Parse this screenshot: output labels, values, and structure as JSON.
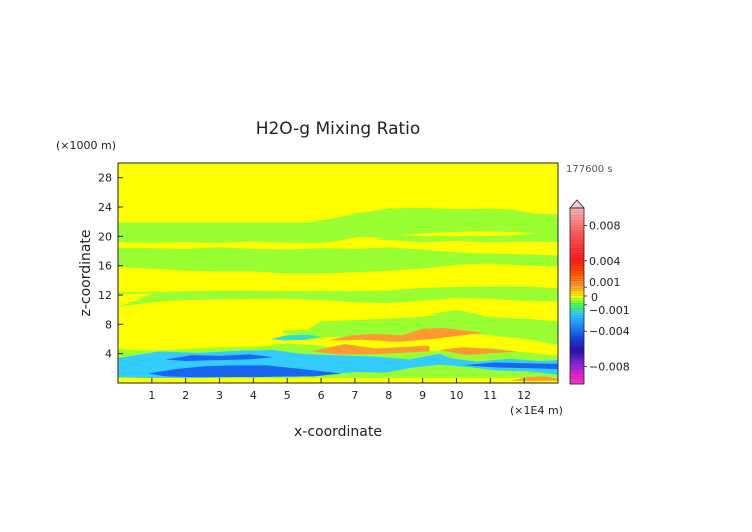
{
  "chart_data": {
    "type": "heatmap",
    "title": "H2O-g Mixing Ratio",
    "xlabel": "x-coordinate",
    "ylabel": "z-coordinate",
    "x_unit": "(×1E4 m)",
    "y_unit": "(×1000 m)",
    "time_label": "177600 s",
    "xlim": [
      0,
      13
    ],
    "ylim": [
      0,
      30
    ],
    "x_ticks": [
      "1",
      "2",
      "3",
      "4",
      "5",
      "6",
      "7",
      "8",
      "9",
      "10",
      "11",
      "12"
    ],
    "y_ticks": [
      "4",
      "8",
      "12",
      "16",
      "20",
      "24",
      "28"
    ],
    "colorbar": {
      "range": [
        -0.01,
        0.01
      ],
      "tick_labels": [
        "0.008",
        "0.004",
        "0.001",
        "0",
        "−0.001",
        "−0.004",
        "−0.008"
      ],
      "tick_values": [
        0.008,
        0.004,
        0.001,
        0,
        -0.001,
        -0.004,
        -0.008
      ]
    },
    "background_color": "#ffff00",
    "colors": {
      "pos_small": "#ffff00",
      "neg_small": "#99ff33",
      "pos_mid": "#ff9933",
      "neg_mid": "#33ccff",
      "neg_strong": "#1a66ee",
      "neg_weak_cyan": "#33ddcc"
    },
    "regions": [
      {
        "color": "#99ff33",
        "points": [
          [
            0,
            0.7
          ],
          [
            13,
            0.7
          ],
          [
            13,
            3.7
          ],
          [
            12,
            4.2
          ],
          [
            11,
            4.8
          ],
          [
            10,
            4.6
          ],
          [
            9,
            4.2
          ],
          [
            8,
            4.4
          ],
          [
            7,
            4.1
          ],
          [
            6,
            5.1
          ],
          [
            5,
            5.4
          ],
          [
            4,
            4.9
          ],
          [
            3,
            4.9
          ],
          [
            2,
            4.6
          ],
          [
            1,
            4.4
          ],
          [
            0,
            4.6
          ]
        ]
      },
      {
        "color": "#99ff33",
        "points": [
          [
            4.8,
            7.1
          ],
          [
            5.6,
            7.3
          ],
          [
            6,
            8.4
          ],
          [
            7.1,
            8.6
          ],
          [
            8.1,
            8.8
          ],
          [
            9,
            9.2
          ],
          [
            10,
            10
          ],
          [
            11,
            9
          ],
          [
            12,
            8.8
          ],
          [
            13,
            8.4
          ],
          [
            13,
            5.2
          ],
          [
            12,
            6
          ],
          [
            11,
            6.5
          ],
          [
            10,
            6.8
          ],
          [
            9,
            6.5
          ],
          [
            8,
            6.2
          ],
          [
            7,
            6.3
          ],
          [
            6,
            6.2
          ],
          [
            5,
            6.7
          ]
        ]
      },
      {
        "color": "#99ff33",
        "points": [
          [
            0,
            10.4
          ],
          [
            1,
            11
          ],
          [
            2,
            11.3
          ],
          [
            3,
            11.4
          ],
          [
            4,
            11.5
          ],
          [
            5,
            11.5
          ],
          [
            6,
            11.3
          ],
          [
            7,
            11
          ],
          [
            8,
            10.9
          ],
          [
            9,
            11.2
          ],
          [
            10,
            11.6
          ],
          [
            11,
            11.5
          ],
          [
            12,
            11.2
          ],
          [
            13,
            11.1
          ],
          [
            13,
            12.9
          ],
          [
            12,
            13.2
          ],
          [
            11,
            13.2
          ],
          [
            10,
            13.1
          ],
          [
            9,
            13
          ],
          [
            8,
            12.6
          ],
          [
            7,
            12.5
          ],
          [
            6,
            12.6
          ],
          [
            5,
            12.5
          ],
          [
            4,
            12.6
          ],
          [
            3,
            12.6
          ],
          [
            2,
            12.5
          ],
          [
            1,
            12.4
          ],
          [
            0,
            12.4
          ]
        ]
      },
      {
        "color": "#99ff33",
        "points": [
          [
            0,
            15.8
          ],
          [
            1,
            15.6
          ],
          [
            2,
            15.3
          ],
          [
            3,
            15.2
          ],
          [
            4,
            15.2
          ],
          [
            5,
            14.9
          ],
          [
            6,
            14.9
          ],
          [
            7,
            15.1
          ],
          [
            8,
            15.3
          ],
          [
            9,
            15.6
          ],
          [
            10,
            16.1
          ],
          [
            11,
            16.3
          ],
          [
            12,
            16
          ],
          [
            13,
            15.9
          ],
          [
            13,
            17.4
          ],
          [
            11.5,
            17.6
          ],
          [
            10,
            17.8
          ],
          [
            9,
            18.2
          ],
          [
            8,
            18.5
          ],
          [
            7,
            18.3
          ],
          [
            6,
            18.4
          ],
          [
            5,
            18.2
          ],
          [
            4,
            18.3
          ],
          [
            3,
            18.5
          ],
          [
            2,
            18.3
          ],
          [
            1,
            18.4
          ],
          [
            0,
            18.4
          ]
        ]
      },
      {
        "color": "#99ff33",
        "points": [
          [
            0,
            19.2
          ],
          [
            1,
            19.1
          ],
          [
            2,
            19.2
          ],
          [
            3,
            19.1
          ],
          [
            4,
            19.3
          ],
          [
            5,
            19.1
          ],
          [
            6,
            19.1
          ],
          [
            7,
            19.6
          ],
          [
            8,
            19.5
          ],
          [
            9,
            19.2
          ],
          [
            10,
            19.4
          ],
          [
            11,
            19.2
          ],
          [
            12,
            19.3
          ],
          [
            13,
            19.2
          ],
          [
            13,
            21.9
          ],
          [
            0,
            21.9
          ]
        ]
      },
      {
        "color": "#99ff33",
        "points": [
          [
            5.6,
            21.9
          ],
          [
            6.3,
            22.4
          ],
          [
            7,
            23.1
          ],
          [
            8,
            23.8
          ],
          [
            9,
            23.9
          ],
          [
            10,
            23.7
          ],
          [
            11,
            23.8
          ],
          [
            11.7,
            23.6
          ],
          [
            12.3,
            23.1
          ],
          [
            13,
            23
          ],
          [
            13,
            21.9
          ]
        ]
      },
      {
        "color": "#99ff33",
        "points": [
          [
            4.7,
            6.1
          ],
          [
            5.4,
            6.6
          ],
          [
            6.1,
            6.1
          ],
          [
            5.5,
            5.8
          ]
        ]
      },
      {
        "color": "#99ff33",
        "points": [
          [
            6.4,
            4.6
          ],
          [
            7.4,
            4.3
          ],
          [
            8.4,
            4.5
          ],
          [
            9.3,
            4.4
          ],
          [
            10.3,
            4.3
          ],
          [
            11.2,
            4.1
          ],
          [
            12,
            3.8
          ],
          [
            12,
            3.2
          ],
          [
            11.2,
            3.4
          ],
          [
            10.3,
            3.5
          ],
          [
            9.4,
            3.5
          ],
          [
            8.5,
            3.3
          ],
          [
            7.6,
            3.2
          ],
          [
            6.7,
            3.4
          ]
        ]
      },
      {
        "color": "#ffff00",
        "points": [
          [
            0,
            10.4
          ],
          [
            0.5,
            11.2
          ],
          [
            1,
            12.2
          ],
          [
            0,
            12.1
          ]
        ]
      },
      {
        "color": "#ffff00",
        "points": [
          [
            7.4,
            9.2
          ],
          [
            8.1,
            9.6
          ],
          [
            9,
            9.7
          ],
          [
            9.4,
            9.2
          ],
          [
            8.6,
            8.9
          ],
          [
            7.8,
            8.9
          ]
        ]
      },
      {
        "color": "#ffff00",
        "points": [
          [
            3.2,
            14.6
          ],
          [
            3.6,
            15
          ],
          [
            4.1,
            14.9
          ],
          [
            3.7,
            14.5
          ]
        ]
      },
      {
        "color": "#ffff00",
        "points": [
          [
            5.7,
            18.9
          ],
          [
            6.4,
            19.3
          ],
          [
            7.1,
            19.9
          ],
          [
            7.9,
            19.8
          ],
          [
            7.3,
            19.2
          ],
          [
            6.6,
            18.9
          ]
        ]
      },
      {
        "color": "#ffff00",
        "points": [
          [
            8.1,
            18.8
          ],
          [
            9.3,
            19
          ],
          [
            10.4,
            19.2
          ],
          [
            11.3,
            19.2
          ],
          [
            10.3,
            18.6
          ],
          [
            9.1,
            18.5
          ]
        ]
      },
      {
        "color": "#ffff00",
        "points": [
          [
            8.3,
            20.2
          ],
          [
            9.4,
            20.5
          ],
          [
            10.5,
            20.7
          ],
          [
            11.6,
            20.6
          ],
          [
            12.4,
            20.4
          ],
          [
            11.5,
            20.1
          ],
          [
            10.3,
            20
          ],
          [
            9.1,
            20
          ]
        ]
      },
      {
        "color": "#ff9933",
        "points": [
          [
            5.7,
            4.3
          ],
          [
            6.7,
            5.3
          ],
          [
            7.6,
            4.7
          ],
          [
            8.4,
            4.9
          ],
          [
            9.2,
            5.1
          ],
          [
            9.2,
            4.3
          ],
          [
            8.3,
            4.1
          ],
          [
            7.5,
            3.9
          ],
          [
            6.5,
            3.9
          ]
        ]
      },
      {
        "color": "#ff9933",
        "points": [
          [
            6.2,
            5.8
          ],
          [
            6.9,
            6.5
          ],
          [
            7.6,
            6.7
          ],
          [
            8.4,
            6.5
          ],
          [
            9.0,
            7.4
          ],
          [
            9.6,
            7.5
          ],
          [
            10.2,
            7.2
          ],
          [
            10.8,
            6.8
          ],
          [
            10.2,
            6.5
          ],
          [
            9.3,
            6.0
          ],
          [
            8.3,
            5.6
          ],
          [
            7.2,
            5.9
          ]
        ]
      },
      {
        "color": "#ff9933",
        "points": [
          [
            9.5,
            4.5
          ],
          [
            10.3,
            3.8
          ],
          [
            11.2,
            4.1
          ],
          [
            11.8,
            4.3
          ],
          [
            11.1,
            4.6
          ],
          [
            10.2,
            4.9
          ]
        ]
      },
      {
        "color": "#ff9933",
        "points": [
          [
            11.6,
            0.3
          ],
          [
            12.1,
            0.8
          ],
          [
            12.6,
            0.9
          ],
          [
            13,
            0.6
          ],
          [
            13,
            0.3
          ]
        ]
      },
      {
        "color": "#33ccff",
        "points": [
          [
            0,
            3.4
          ],
          [
            1.2,
            4.3
          ],
          [
            2.4,
            4.1
          ],
          [
            3.6,
            4.4
          ],
          [
            4.6,
            4.5
          ],
          [
            5.4,
            4.0
          ],
          [
            6.3,
            3.8
          ],
          [
            7.6,
            3.6
          ],
          [
            8.6,
            3.2
          ],
          [
            9.5,
            4.0
          ],
          [
            9.8,
            3.4
          ],
          [
            10.6,
            2.9
          ],
          [
            11.6,
            3.3
          ],
          [
            12.4,
            3.0
          ],
          [
            13,
            3.1
          ],
          [
            13,
            1.1
          ],
          [
            12.1,
            1.6
          ],
          [
            11.2,
            1.7
          ],
          [
            10.3,
            2.2
          ],
          [
            9.5,
            2.5
          ],
          [
            8.7,
            2.1
          ],
          [
            7.9,
            1.4
          ],
          [
            7.0,
            1.5
          ],
          [
            6.1,
            1.1
          ],
          [
            5.2,
            0.8
          ],
          [
            4.3,
            0.8
          ],
          [
            3.4,
            0.8
          ],
          [
            2.5,
            0.7
          ],
          [
            1.6,
            0.7
          ],
          [
            0.8,
            0.7
          ],
          [
            0,
            0.8
          ]
        ]
      },
      {
        "color": "#1a66ee",
        "points": [
          [
            0.9,
            1.3
          ],
          [
            1.7,
            1.9
          ],
          [
            2.6,
            2.3
          ],
          [
            3.5,
            2.4
          ],
          [
            4.4,
            2.4
          ],
          [
            5.2,
            2.0
          ],
          [
            6,
            1.6
          ],
          [
            6.6,
            1.3
          ],
          [
            5.8,
            0.9
          ],
          [
            4.9,
            0.9
          ],
          [
            4,
            0.8
          ],
          [
            3.1,
            0.8
          ],
          [
            2.2,
            0.8
          ],
          [
            1.4,
            0.9
          ]
        ]
      },
      {
        "color": "#1a66ee",
        "points": [
          [
            1.4,
            3.2
          ],
          [
            2.2,
            3.8
          ],
          [
            3.0,
            3.7
          ],
          [
            3.9,
            3.9
          ],
          [
            4.6,
            3.5
          ],
          [
            3.8,
            3.2
          ],
          [
            2.8,
            3.1
          ],
          [
            2.0,
            3.0
          ]
        ]
      },
      {
        "color": "#1a66ee",
        "points": [
          [
            10.2,
            2.4
          ],
          [
            11.1,
            2.8
          ],
          [
            12.0,
            2.7
          ],
          [
            13,
            2.6
          ],
          [
            13,
            1.9
          ],
          [
            12.2,
            2.0
          ],
          [
            11.3,
            2.1
          ]
        ]
      },
      {
        "color": "#33ddcc",
        "points": [
          [
            4.5,
            6.0
          ],
          [
            5.0,
            6.5
          ],
          [
            5.6,
            6.6
          ],
          [
            6.0,
            6.3
          ],
          [
            5.5,
            5.9
          ],
          [
            4.9,
            5.8
          ]
        ]
      }
    ]
  }
}
